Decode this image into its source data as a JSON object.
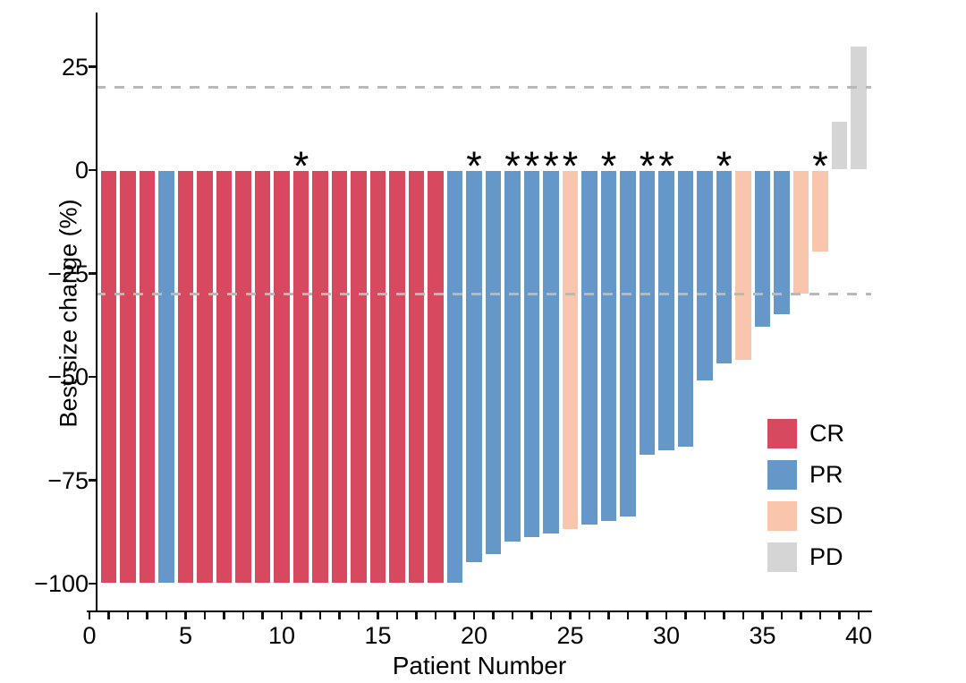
{
  "chart_data": {
    "type": "bar",
    "variant": "waterfall",
    "title": "",
    "xlabel": "Patient Number",
    "ylabel": "Best size change (%)",
    "x_range": [
      0,
      40
    ],
    "ylim": [
      -107,
      38
    ],
    "grid": false,
    "legend_position": "inside-right",
    "annotation_symbol": "*",
    "y_ticks": [
      {
        "value": 25,
        "label": "25"
      },
      {
        "value": 0,
        "label": "0"
      },
      {
        "value": -25,
        "label": "−25"
      },
      {
        "value": -50,
        "label": "−50"
      },
      {
        "value": -75,
        "label": "−75"
      },
      {
        "value": -100,
        "label": "−100"
      }
    ],
    "x_labeled_ticks": [
      {
        "value": 0,
        "label": "0"
      },
      {
        "value": 5,
        "label": "5"
      },
      {
        "value": 10,
        "label": "10"
      },
      {
        "value": 15,
        "label": "15"
      },
      {
        "value": 20,
        "label": "20"
      },
      {
        "value": 25,
        "label": "25"
      },
      {
        "value": 30,
        "label": "30"
      },
      {
        "value": 35,
        "label": "35"
      },
      {
        "value": 40,
        "label": "40"
      }
    ],
    "x_minor_tick_every": 1,
    "reference_lines": [
      {
        "y": 20,
        "style": "dashed",
        "color": "#B9B9B9"
      },
      {
        "y": -30,
        "style": "dashed",
        "color": "#B9B9B9"
      }
    ],
    "colors": {
      "CR": "#D6495F",
      "PR": "#6598C8",
      "SD": "#F9C6AD",
      "PD": "#D5D5D5"
    },
    "legend_items": [
      {
        "label": "CR",
        "color": "#D6495F"
      },
      {
        "label": "PR",
        "color": "#6598C8"
      },
      {
        "label": "SD",
        "color": "#F9C6AD"
      },
      {
        "label": "PD",
        "color": "#D5D5D5"
      }
    ],
    "patients": [
      {
        "patient": 1,
        "value": -100,
        "response": "CR",
        "starred": false
      },
      {
        "patient": 2,
        "value": -100,
        "response": "CR",
        "starred": false
      },
      {
        "patient": 3,
        "value": -100,
        "response": "CR",
        "starred": false
      },
      {
        "patient": 4,
        "value": -100,
        "response": "PR",
        "starred": false
      },
      {
        "patient": 5,
        "value": -100,
        "response": "CR",
        "starred": false
      },
      {
        "patient": 6,
        "value": -100,
        "response": "CR",
        "starred": false
      },
      {
        "patient": 7,
        "value": -100,
        "response": "CR",
        "starred": false
      },
      {
        "patient": 8,
        "value": -100,
        "response": "CR",
        "starred": false
      },
      {
        "patient": 9,
        "value": -100,
        "response": "CR",
        "starred": false
      },
      {
        "patient": 10,
        "value": -100,
        "response": "CR",
        "starred": false
      },
      {
        "patient": 11,
        "value": -100,
        "response": "CR",
        "starred": true
      },
      {
        "patient": 12,
        "value": -100,
        "response": "CR",
        "starred": false
      },
      {
        "patient": 13,
        "value": -100,
        "response": "CR",
        "starred": false
      },
      {
        "patient": 14,
        "value": -100,
        "response": "CR",
        "starred": false
      },
      {
        "patient": 15,
        "value": -100,
        "response": "CR",
        "starred": false
      },
      {
        "patient": 16,
        "value": -100,
        "response": "CR",
        "starred": false
      },
      {
        "patient": 17,
        "value": -100,
        "response": "CR",
        "starred": false
      },
      {
        "patient": 18,
        "value": -100,
        "response": "CR",
        "starred": false
      },
      {
        "patient": 19,
        "value": -100,
        "response": "PR",
        "starred": false
      },
      {
        "patient": 20,
        "value": -95,
        "response": "PR",
        "starred": true
      },
      {
        "patient": 21,
        "value": -93,
        "response": "PR",
        "starred": false
      },
      {
        "patient": 22,
        "value": -90,
        "response": "PR",
        "starred": true
      },
      {
        "patient": 23,
        "value": -89,
        "response": "PR",
        "starred": true
      },
      {
        "patient": 24,
        "value": -88,
        "response": "PR",
        "starred": true
      },
      {
        "patient": 25,
        "value": -87,
        "response": "SD",
        "starred": true
      },
      {
        "patient": 26,
        "value": -86,
        "response": "PR",
        "starred": false
      },
      {
        "patient": 27,
        "value": -85,
        "response": "PR",
        "starred": true
      },
      {
        "patient": 28,
        "value": -84,
        "response": "PR",
        "starred": false
      },
      {
        "patient": 29,
        "value": -69,
        "response": "PR",
        "starred": true
      },
      {
        "patient": 30,
        "value": -68,
        "response": "PR",
        "starred": true
      },
      {
        "patient": 31,
        "value": -67,
        "response": "PR",
        "starred": false
      },
      {
        "patient": 32,
        "value": -51,
        "response": "PR",
        "starred": false
      },
      {
        "patient": 33,
        "value": -47,
        "response": "PR",
        "starred": true
      },
      {
        "patient": 34,
        "value": -46,
        "response": "SD",
        "starred": false
      },
      {
        "patient": 35,
        "value": -38,
        "response": "PR",
        "starred": false
      },
      {
        "patient": 36,
        "value": -35,
        "response": "PR",
        "starred": false
      },
      {
        "patient": 37,
        "value": -30,
        "response": "SD",
        "starred": false
      },
      {
        "patient": 38,
        "value": -20,
        "response": "SD",
        "starred": true
      },
      {
        "patient": 39,
        "value": 12,
        "response": "PD",
        "starred": false
      },
      {
        "patient": 40,
        "value": 30,
        "response": "PD",
        "starred": false
      }
    ]
  }
}
